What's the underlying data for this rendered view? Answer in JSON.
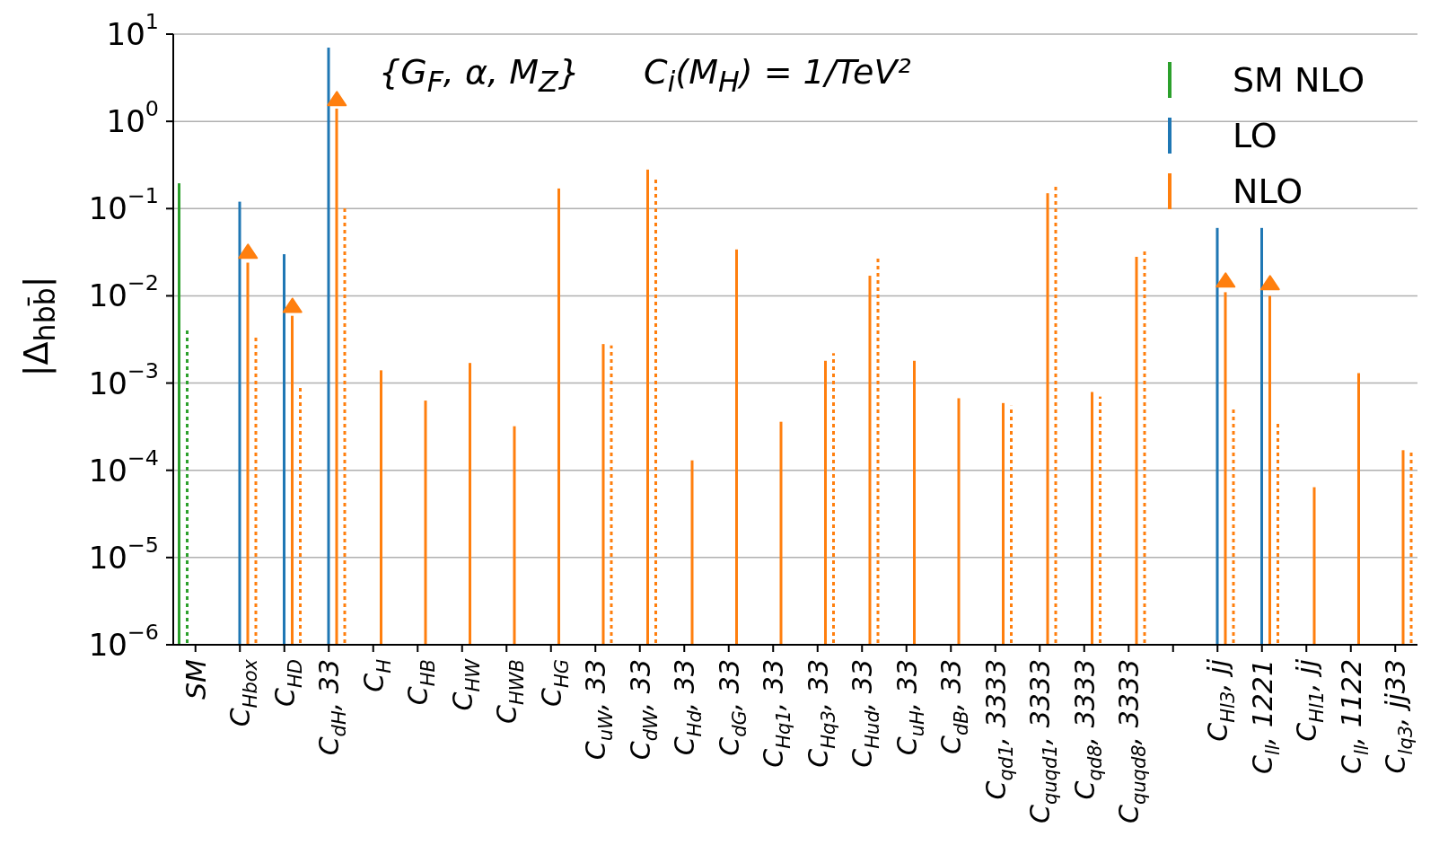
{
  "chart_data": {
    "type": "bar",
    "ylabel": "|Δ$_{hbb̄}$|",
    "annotations": [
      "{G$_{F}$, α, M$_{Z}$}",
      "C$_{i}$(M$_{H}$) = 1/TeV²"
    ],
    "categories": [
      "SM",
      "C$_{Hbox}$",
      "C$_{HD}$",
      "C$_{dH}$, 33",
      "C$_{H}$",
      "C$_{HB}$",
      "C$_{HW}$",
      "C$_{HWB}$",
      "C$_{HG}$",
      "C$_{uW}$, 33",
      "C$_{dW}$, 33",
      "C$_{Hd}$, 33",
      "C$_{dG}$, 33",
      "C$_{Hq1}$, 33",
      "C$_{Hq3}$, 33",
      "C$_{Hud}$, 33",
      "C$_{uH}$, 33",
      "C$_{dB}$, 33",
      "C$_{qd1}$, 3333",
      "C$_{quqd1}$, 3333",
      "C$_{qd8}$, 3333",
      "C$_{quqd8}$, 3333",
      null,
      "C$_{Hl3}$, jj",
      "C$_{ll}$, 1221",
      "C$_{Hl1}$, jj",
      "C$_{ll}$, 1122",
      "C$_{lq3}$, jj33"
    ],
    "series": [
      {
        "name": "SM NLO",
        "color": "#2ca02c",
        "values": [
          0.195,
          null,
          null,
          null,
          null,
          null,
          null,
          null,
          null,
          null,
          null,
          null,
          null,
          null,
          null,
          null,
          null,
          null,
          null,
          null,
          null,
          null,
          null,
          null,
          null,
          null,
          null,
          null
        ]
      },
      {
        "color": "#2ca02c",
        "line_style": "dotted",
        "values": [
          0.0044,
          null,
          null,
          null,
          null,
          null,
          null,
          null,
          null,
          null,
          null,
          null,
          null,
          null,
          null,
          null,
          null,
          null,
          null,
          null,
          null,
          null,
          null,
          null,
          null,
          null,
          null,
          null
        ]
      },
      {
        "name": "LO",
        "color": "#1f77b4",
        "values": [
          null,
          0.12,
          0.03,
          7,
          null,
          null,
          null,
          null,
          null,
          null,
          null,
          null,
          null,
          null,
          null,
          null,
          null,
          null,
          null,
          null,
          null,
          null,
          null,
          0.06,
          0.06,
          null,
          null,
          null
        ]
      },
      {
        "name": "NLO",
        "color": "#ff7f0e",
        "values": [
          null,
          0.024,
          0.0059,
          1.4,
          0.0014,
          0.00063,
          0.0017,
          0.00032,
          0.17,
          0.0028,
          0.28,
          0.00013,
          0.034,
          0.00036,
          0.0018,
          0.017,
          0.0018,
          0.00067,
          0.00059,
          0.15,
          0.00079,
          0.028,
          null,
          0.011,
          0.01,
          6.4e-05,
          0.0013,
          0.00017
        ]
      },
      {
        "color": "#ff7f0e",
        "line_style": "dotted",
        "values": [
          null,
          0.0035,
          0.00088,
          0.11,
          null,
          null,
          null,
          null,
          null,
          0.0027,
          0.22,
          null,
          null,
          null,
          0.0022,
          0.028,
          null,
          null,
          0.00055,
          0.18,
          0.0007,
          0.035,
          null,
          0.00054,
          0.00035,
          null,
          null,
          0.00017
        ]
      },
      {
        "type": "scatter",
        "color": "#ff7f0e",
        "marker": "triangle",
        "x": [
          "C$_{Hbox}$",
          "C$_{HD}$",
          "C$_{dH}$, 33",
          "C$_{Hl3}$, jj",
          "C$_{ll}$, 1221"
        ],
        "values": [
          0.032,
          0.0077,
          1.8,
          0.015,
          0.014
        ]
      }
    ],
    "log": "y",
    "ylim": [
      1e-06,
      10
    ],
    "yticks": [
      {
        "value": 1e-06,
        "label": "10$^{−6}$"
      },
      {
        "value": 1e-05,
        "label": "10$^{−5}$"
      },
      {
        "value": 0.0001,
        "label": "10$^{−4}$"
      },
      {
        "value": 0.001,
        "label": "10$^{−3}$"
      },
      {
        "value": 0.01,
        "label": "10$^{−2}$"
      },
      {
        "value": 0.1,
        "label": "10$^{−1}$"
      },
      {
        "value": 1,
        "label": "10$^{0}$"
      },
      {
        "value": 10,
        "label": "10$^{1}$"
      }
    ],
    "grid": "y",
    "legend": "top right"
  }
}
